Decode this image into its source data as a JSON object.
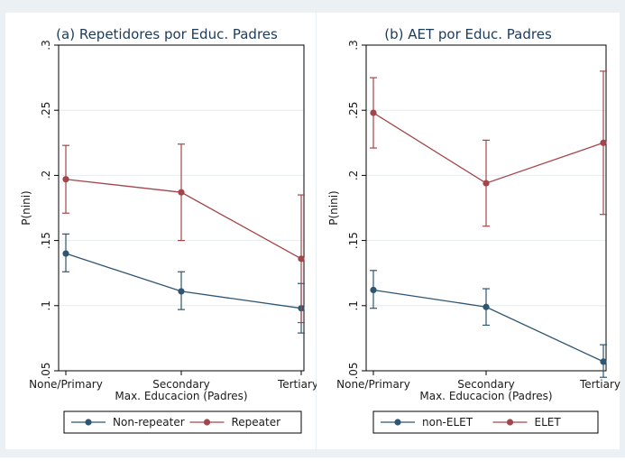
{
  "chart_data": [
    {
      "type": "line",
      "title": "(a) Repetidores por Educ. Padres",
      "xlabel": "Max. Educacion (Padres)",
      "ylabel": "P(nini)",
      "categories": [
        "None/Primary",
        "Secondary",
        "Tertiary"
      ],
      "yticks": [
        ".05",
        ".1",
        ".15",
        ".2",
        ".25",
        ".3"
      ],
      "ylim": [
        0.05,
        0.3
      ],
      "grid": true,
      "legend_position": "bottom",
      "series": [
        {
          "name": "Non-repeater",
          "color": "#2e5572",
          "values": [
            0.14,
            0.111,
            0.098
          ],
          "ci_low": [
            0.126,
            0.097,
            0.079
          ],
          "ci_high": [
            0.155,
            0.126,
            0.117
          ]
        },
        {
          "name": "Repeater",
          "color": "#a3464b",
          "values": [
            0.197,
            0.187,
            0.136
          ],
          "ci_low": [
            0.171,
            0.15,
            0.087
          ],
          "ci_high": [
            0.223,
            0.224,
            0.185
          ]
        }
      ]
    },
    {
      "type": "line",
      "title": "(b) AET por Educ. Padres",
      "xlabel": "Max. Educacion (Padres)",
      "ylabel": "P(nini)",
      "categories": [
        "None/Primary",
        "Secondary",
        "Tertiary"
      ],
      "yticks": [
        ".05",
        ".1",
        ".15",
        ".2",
        ".25",
        ".3"
      ],
      "ylim": [
        0.05,
        0.3
      ],
      "grid": true,
      "legend_position": "bottom",
      "series": [
        {
          "name": "non-ELET",
          "color": "#2e5572",
          "values": [
            0.112,
            0.099,
            0.057
          ],
          "ci_low": [
            0.098,
            0.085,
            0.045
          ],
          "ci_high": [
            0.127,
            0.113,
            0.07
          ]
        },
        {
          "name": "ELET",
          "color": "#a3464b",
          "values": [
            0.248,
            0.194,
            0.225
          ],
          "ci_low": [
            0.221,
            0.161,
            0.17
          ],
          "ci_high": [
            0.275,
            0.227,
            0.28
          ]
        }
      ]
    }
  ]
}
